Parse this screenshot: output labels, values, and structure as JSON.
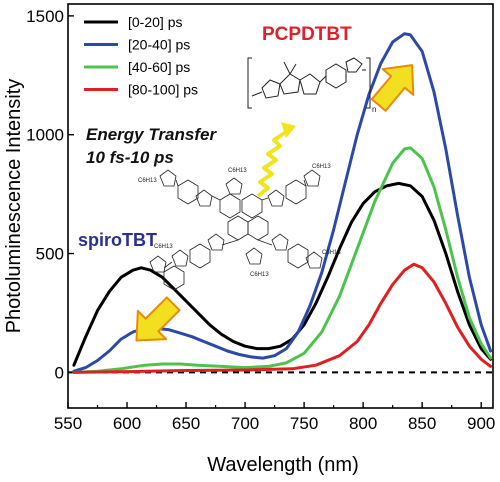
{
  "chart_data": {
    "type": "line",
    "xlabel": "Wavelength (nm)",
    "ylabel": "Photoluminescence Intensity",
    "xlim": [
      550,
      910
    ],
    "ylim": [
      -150,
      1550
    ],
    "x_ticks": [
      550,
      600,
      650,
      700,
      750,
      800,
      850,
      900
    ],
    "y_ticks": [
      0,
      500,
      1000,
      1500
    ],
    "baseline": {
      "y": 0,
      "style": "dashed",
      "color": "#000000"
    },
    "legend_position": "top-left",
    "series": [
      {
        "name": "[0-20] ps",
        "color": "#000000",
        "points": [
          [
            555,
            30
          ],
          [
            565,
            150
          ],
          [
            575,
            260
          ],
          [
            585,
            340
          ],
          [
            595,
            400
          ],
          [
            605,
            430
          ],
          [
            612,
            440
          ],
          [
            620,
            430
          ],
          [
            630,
            400
          ],
          [
            640,
            350
          ],
          [
            650,
            300
          ],
          [
            660,
            250
          ],
          [
            670,
            200
          ],
          [
            680,
            160
          ],
          [
            690,
            130
          ],
          [
            700,
            110
          ],
          [
            710,
            100
          ],
          [
            720,
            100
          ],
          [
            730,
            110
          ],
          [
            740,
            140
          ],
          [
            750,
            200
          ],
          [
            760,
            290
          ],
          [
            770,
            400
          ],
          [
            780,
            520
          ],
          [
            790,
            630
          ],
          [
            800,
            710
          ],
          [
            810,
            760
          ],
          [
            820,
            785
          ],
          [
            830,
            795
          ],
          [
            840,
            785
          ],
          [
            850,
            740
          ],
          [
            860,
            640
          ],
          [
            870,
            500
          ],
          [
            880,
            340
          ],
          [
            890,
            200
          ],
          [
            900,
            100
          ],
          [
            908,
            55
          ]
        ]
      },
      {
        "name": "[20-40] ps",
        "color": "#2b4aa8",
        "points": [
          [
            555,
            5
          ],
          [
            565,
            20
          ],
          [
            575,
            50
          ],
          [
            585,
            90
          ],
          [
            595,
            140
          ],
          [
            605,
            170
          ],
          [
            615,
            185
          ],
          [
            625,
            185
          ],
          [
            635,
            180
          ],
          [
            645,
            165
          ],
          [
            655,
            150
          ],
          [
            665,
            130
          ],
          [
            675,
            110
          ],
          [
            685,
            90
          ],
          [
            695,
            75
          ],
          [
            705,
            65
          ],
          [
            715,
            60
          ],
          [
            725,
            70
          ],
          [
            735,
            100
          ],
          [
            745,
            170
          ],
          [
            755,
            280
          ],
          [
            765,
            420
          ],
          [
            775,
            600
          ],
          [
            785,
            800
          ],
          [
            795,
            1000
          ],
          [
            805,
            1170
          ],
          [
            815,
            1300
          ],
          [
            825,
            1390
          ],
          [
            835,
            1425
          ],
          [
            840,
            1420
          ],
          [
            850,
            1350
          ],
          [
            860,
            1180
          ],
          [
            870,
            940
          ],
          [
            880,
            660
          ],
          [
            890,
            400
          ],
          [
            900,
            200
          ],
          [
            908,
            90
          ]
        ]
      },
      {
        "name": "[40-60] ps",
        "color": "#4cc44c",
        "points": [
          [
            555,
            0
          ],
          [
            575,
            5
          ],
          [
            595,
            15
          ],
          [
            615,
            30
          ],
          [
            630,
            35
          ],
          [
            645,
            35
          ],
          [
            660,
            30
          ],
          [
            680,
            25
          ],
          [
            700,
            20
          ],
          [
            720,
            25
          ],
          [
            735,
            40
          ],
          [
            750,
            80
          ],
          [
            765,
            170
          ],
          [
            780,
            320
          ],
          [
            795,
            520
          ],
          [
            810,
            720
          ],
          [
            825,
            880
          ],
          [
            835,
            940
          ],
          [
            840,
            945
          ],
          [
            850,
            900
          ],
          [
            860,
            780
          ],
          [
            870,
            600
          ],
          [
            880,
            400
          ],
          [
            890,
            230
          ],
          [
            900,
            120
          ],
          [
            908,
            60
          ]
        ]
      },
      {
        "name": "[80-100] ps",
        "color": "#e02020",
        "points": [
          [
            555,
            0
          ],
          [
            600,
            3
          ],
          [
            650,
            8
          ],
          [
            700,
            10
          ],
          [
            740,
            15
          ],
          [
            760,
            30
          ],
          [
            780,
            70
          ],
          [
            795,
            130
          ],
          [
            805,
            200
          ],
          [
            815,
            290
          ],
          [
            825,
            370
          ],
          [
            835,
            430
          ],
          [
            843,
            455
          ],
          [
            850,
            440
          ],
          [
            860,
            380
          ],
          [
            870,
            290
          ],
          [
            880,
            190
          ],
          [
            890,
            110
          ],
          [
            900,
            55
          ],
          [
            908,
            25
          ]
        ]
      }
    ]
  },
  "annotations": {
    "energy_transfer_line1": "Energy Transfer",
    "energy_transfer_line2": "10 fs-10 ps",
    "pcpdtbt": "PCPDTBT",
    "spirotbt": "spiroTBT",
    "subscript_n": "n",
    "c6h13": "C6H13"
  },
  "colors": {
    "arrow_fill": "#f2df1f",
    "arrow_stroke": "#e88a10",
    "squiggle": "#f2e41c",
    "pcpdtbt_text": "#e0202a",
    "spirotbt_text": "#2b2f8f"
  }
}
